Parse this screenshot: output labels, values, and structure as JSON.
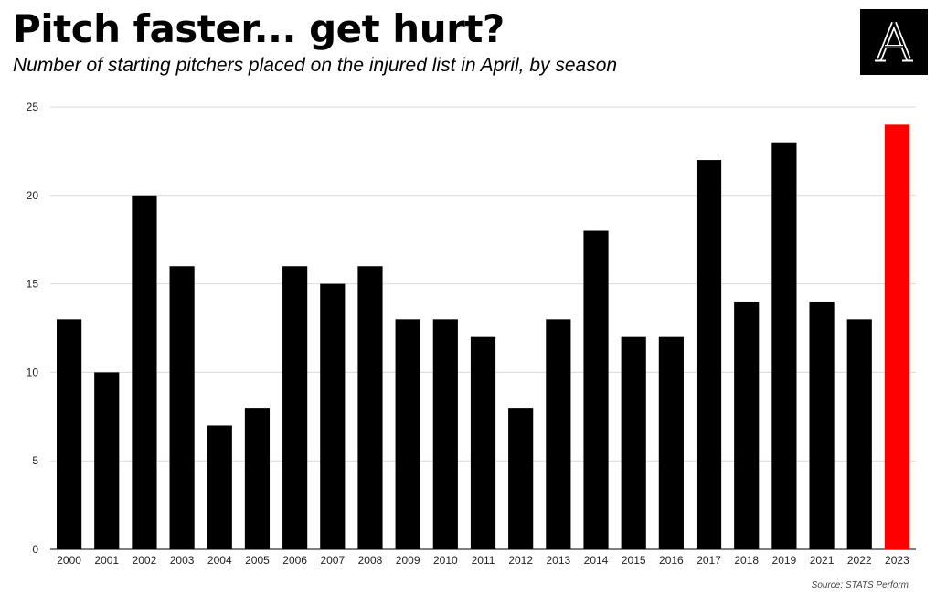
{
  "header": {
    "title": "Pitch faster... get hurt?",
    "subtitle": "Number of starting pitchers placed on the injured list in April, by season"
  },
  "logo": {
    "letter": "A",
    "icon": "the-athletic-logo-icon"
  },
  "footer": {
    "source": "Source: STATS Perform"
  },
  "colors": {
    "bar": "#000000",
    "highlight": "#ff0000",
    "grid": "#d9d9d9",
    "background": "#ffffff",
    "logo_background": "#000000",
    "logo_letter": "#ffffff"
  },
  "chart_data": {
    "type": "bar",
    "title": "",
    "xlabel": "",
    "ylabel": "",
    "categories": [
      "2000",
      "2001",
      "2002",
      "2003",
      "2004",
      "2005",
      "2006",
      "2007",
      "2008",
      "2009",
      "2010",
      "2011",
      "2012",
      "2013",
      "2014",
      "2015",
      "2016",
      "2017",
      "2018",
      "2019",
      "2021",
      "2022",
      "2023"
    ],
    "values": [
      13,
      10,
      20,
      16,
      7,
      8,
      16,
      15,
      16,
      13,
      13,
      12,
      8,
      13,
      18,
      12,
      12,
      22,
      14,
      23,
      14,
      13,
      24
    ],
    "highlight_category": "2023",
    "ylim": [
      0,
      25
    ],
    "yticks": [
      0,
      5,
      10,
      15,
      20,
      25
    ],
    "grid": true,
    "legend": "none"
  }
}
